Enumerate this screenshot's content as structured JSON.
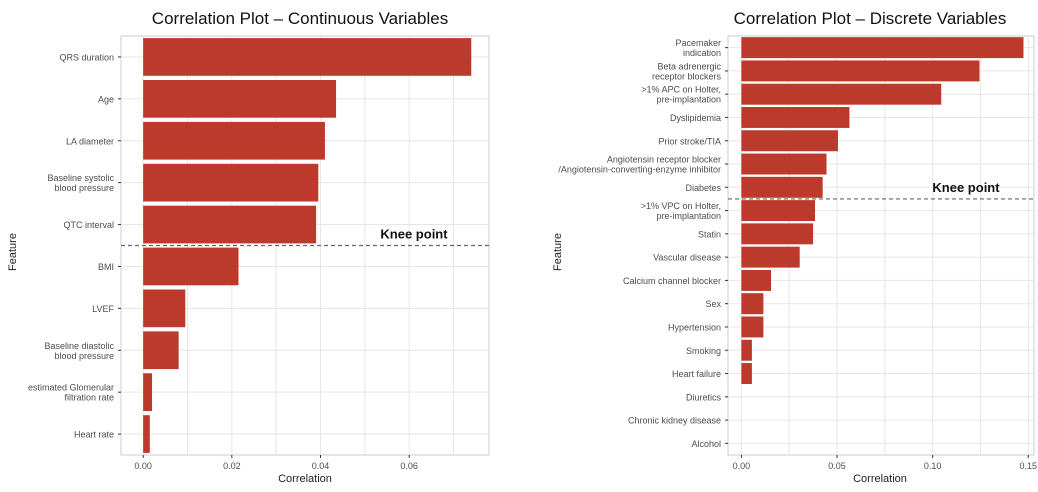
{
  "colors": {
    "bar": "#bb3a2b",
    "grid": "#e6e6e6",
    "panel_border": "#cccccc",
    "text": "#4d4d4d",
    "knee_line": "#666666"
  },
  "chart_data": [
    {
      "type": "bar",
      "orientation": "horizontal",
      "title": "Correlation Plot – Continuous Variables",
      "xlabel": "Correlation",
      "ylabel": "Feature",
      "xlim": [
        -0.005,
        0.078
      ],
      "xticks": [
        0.0,
        0.02,
        0.04,
        0.06
      ],
      "xtick_labels": [
        "0.00",
        "0.02",
        "0.04",
        "0.06"
      ],
      "grid": true,
      "categories": [
        [
          "QRS duration"
        ],
        [
          "Age"
        ],
        [
          "LA diameter"
        ],
        [
          "Baseline systolic",
          "blood pressure"
        ],
        [
          "QTC interval"
        ],
        [
          "BMI"
        ],
        [
          "LVEF"
        ],
        [
          "Baseline diastolic",
          "blood pressure"
        ],
        [
          "estimated Glomerular",
          "filtration rate"
        ],
        [
          "Heart rate"
        ]
      ],
      "values": [
        0.074,
        0.0435,
        0.041,
        0.0395,
        0.039,
        0.0215,
        0.0095,
        0.008,
        0.002,
        0.0015
      ],
      "knee": {
        "label": "Knee point",
        "after_index": 4
      }
    },
    {
      "type": "bar",
      "orientation": "horizontal",
      "title": "Correlation Plot – Discrete Variables",
      "xlabel": "Correlation",
      "ylabel": "Feature",
      "xlim": [
        -0.007,
        0.153
      ],
      "xticks": [
        0.0,
        0.05,
        0.1,
        0.15
      ],
      "xtick_labels": [
        "0.00",
        "0.05",
        "0.10",
        "0.15"
      ],
      "grid": true,
      "categories": [
        [
          "Pacemaker",
          "indication"
        ],
        [
          "Beta adrenergic",
          "receptor blockers"
        ],
        [
          ">1% APC on Holter,",
          "pre-implantation"
        ],
        [
          "Dyslipidemia"
        ],
        [
          "Prior stroke/TIA"
        ],
        [
          "Angiotensin receptor blocker",
          "/Angiotensin-converting-enzyme inhibitor"
        ],
        [
          "Diabetes"
        ],
        [
          ">1% VPC on Holter,",
          "pre-implantation"
        ],
        [
          "Statin"
        ],
        [
          "Vascular disease"
        ],
        [
          "Calcium channel blocker"
        ],
        [
          "Sex"
        ],
        [
          "Hypertension"
        ],
        [
          "Smoking"
        ],
        [
          "Heart failure"
        ],
        [
          "Diuretics"
        ],
        [
          "Chronic kidney disease"
        ],
        [
          "Alcohol"
        ]
      ],
      "values": [
        0.1475,
        0.1245,
        0.1045,
        0.0565,
        0.0505,
        0.0445,
        0.0425,
        0.0385,
        0.0375,
        0.0305,
        0.0155,
        0.0115,
        0.0115,
        0.0055,
        0.0055,
        0.0,
        0.0,
        0.0
      ],
      "knee": {
        "label": "Knee point",
        "after_index": 6
      }
    }
  ]
}
